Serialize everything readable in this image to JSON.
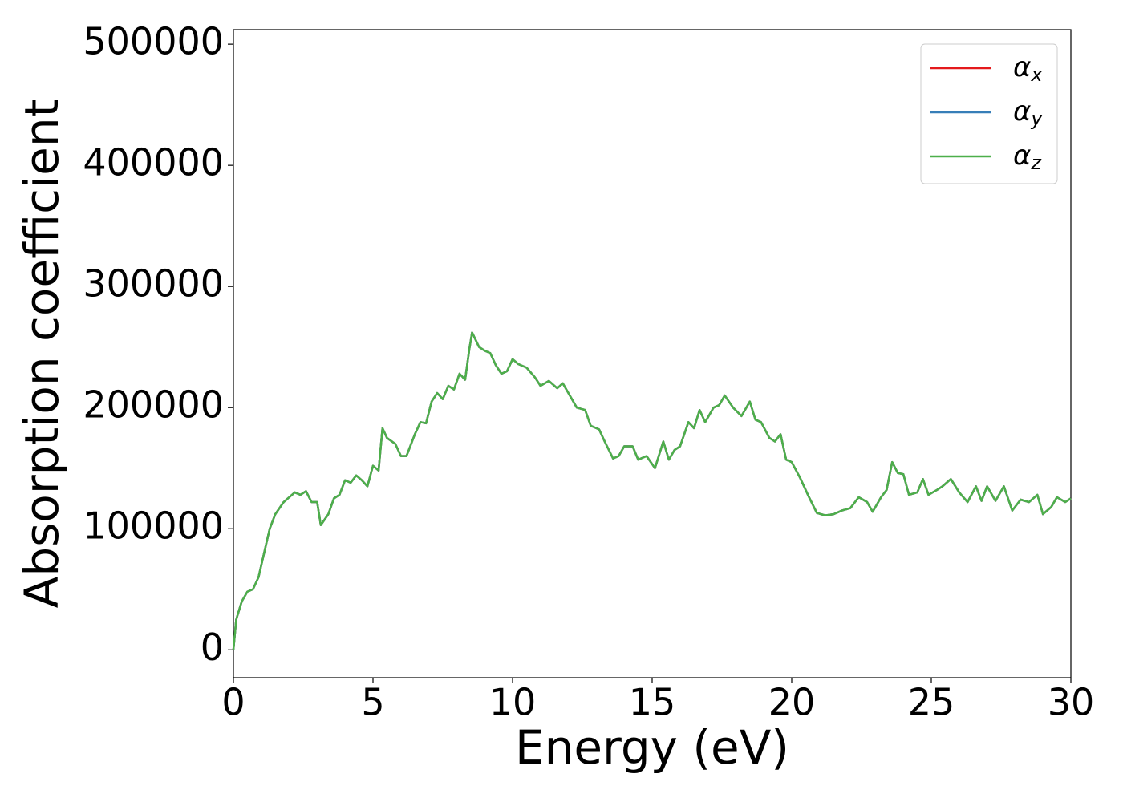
{
  "chart_data": {
    "type": "line",
    "xlabel": "Energy (eV)",
    "ylabel": "Absorption coefficient",
    "x": [
      0,
      0.1,
      0.3,
      0.5,
      0.7,
      0.9,
      1.1,
      1.3,
      1.5,
      1.8,
      2.0,
      2.2,
      2.4,
      2.6,
      2.8,
      3.0,
      3.13,
      3.4,
      3.6,
      3.8,
      4.0,
      4.2,
      4.4,
      4.6,
      4.8,
      5.0,
      5.2,
      5.34,
      5.5,
      5.8,
      6.0,
      6.2,
      6.5,
      6.7,
      6.9,
      7.1,
      7.3,
      7.5,
      7.7,
      7.9,
      8.1,
      8.3,
      8.45,
      8.55,
      8.8,
      9.0,
      9.2,
      9.4,
      9.6,
      9.8,
      10.0,
      10.2,
      10.5,
      10.8,
      11.0,
      11.3,
      11.6,
      11.8,
      12.1,
      12.3,
      12.6,
      12.8,
      13.1,
      13.3,
      13.6,
      13.8,
      14.0,
      14.3,
      14.5,
      14.8,
      15.1,
      15.4,
      15.6,
      15.8,
      16.0,
      16.3,
      16.5,
      16.7,
      16.9,
      17.2,
      17.4,
      17.6,
      17.9,
      18.2,
      18.5,
      18.7,
      18.9,
      19.2,
      19.4,
      19.6,
      19.8,
      20.0,
      20.3,
      20.6,
      20.9,
      21.2,
      21.5,
      21.8,
      22.1,
      22.4,
      22.7,
      22.9,
      23.2,
      23.4,
      23.6,
      23.8,
      24.0,
      24.2,
      24.5,
      24.7,
      24.9,
      25.2,
      25.4,
      25.7,
      26.0,
      26.3,
      26.6,
      26.8,
      27.0,
      27.3,
      27.6,
      27.9,
      28.2,
      28.5,
      28.8,
      29.0,
      29.3,
      29.5,
      29.8,
      30.0
    ],
    "series": [
      {
        "name": "αx",
        "color": "#e41a1c",
        "values": [
          0,
          25000,
          40000,
          48000,
          50000,
          60000,
          80000,
          100000,
          112000,
          122000,
          126000,
          130000,
          128000,
          131000,
          122000,
          122000,
          103000,
          112000,
          125000,
          128000,
          140000,
          138000,
          144000,
          140000,
          135000,
          152000,
          148000,
          183000,
          175000,
          170000,
          160000,
          160000,
          178000,
          188000,
          187000,
          205000,
          212000,
          207000,
          218000,
          215000,
          228000,
          223000,
          248000,
          262000,
          250000,
          247000,
          245000,
          235000,
          228000,
          230000,
          240000,
          236000,
          233000,
          225000,
          218000,
          222000,
          216000,
          220000,
          208000,
          200000,
          198000,
          185000,
          182000,
          172000,
          158000,
          160000,
          168000,
          168000,
          157000,
          160000,
          150000,
          172000,
          157000,
          165000,
          168000,
          188000,
          183000,
          198000,
          188000,
          200000,
          202000,
          210000,
          200000,
          193000,
          205000,
          190000,
          188000,
          175000,
          172000,
          178000,
          157000,
          155000,
          142000,
          127000,
          113000,
          111000,
          112000,
          115000,
          117000,
          126000,
          122000,
          114000,
          126000,
          132000,
          155000,
          146000,
          145000,
          128000,
          130000,
          141000,
          128000,
          132000,
          135000,
          141000,
          130000,
          122000,
          135000,
          123000,
          135000,
          123000,
          135000,
          115000,
          124000,
          122000,
          128000,
          112000,
          118000,
          126000,
          122000,
          125000
        ]
      },
      {
        "name": "αy",
        "color": "#377eb8",
        "values": [
          0,
          25000,
          40000,
          48000,
          50000,
          60000,
          80000,
          100000,
          112000,
          122000,
          126000,
          130000,
          128000,
          131000,
          122000,
          122000,
          103000,
          112000,
          125000,
          128000,
          140000,
          138000,
          144000,
          140000,
          135000,
          152000,
          148000,
          183000,
          175000,
          170000,
          160000,
          160000,
          178000,
          188000,
          187000,
          205000,
          212000,
          207000,
          218000,
          215000,
          228000,
          223000,
          248000,
          262000,
          250000,
          247000,
          245000,
          235000,
          228000,
          230000,
          240000,
          236000,
          233000,
          225000,
          218000,
          222000,
          216000,
          220000,
          208000,
          200000,
          198000,
          185000,
          182000,
          172000,
          158000,
          160000,
          168000,
          168000,
          157000,
          160000,
          150000,
          172000,
          157000,
          165000,
          168000,
          188000,
          183000,
          198000,
          188000,
          200000,
          202000,
          210000,
          200000,
          193000,
          205000,
          190000,
          188000,
          175000,
          172000,
          178000,
          157000,
          155000,
          142000,
          127000,
          113000,
          111000,
          112000,
          115000,
          117000,
          126000,
          122000,
          114000,
          126000,
          132000,
          155000,
          146000,
          145000,
          128000,
          130000,
          141000,
          128000,
          132000,
          135000,
          141000,
          130000,
          122000,
          135000,
          123000,
          135000,
          123000,
          135000,
          115000,
          124000,
          122000,
          128000,
          112000,
          118000,
          126000,
          122000,
          125000
        ]
      },
      {
        "name": "αz",
        "color": "#4daf4a",
        "values": [
          0,
          25000,
          40000,
          48000,
          50000,
          60000,
          80000,
          100000,
          112000,
          122000,
          126000,
          130000,
          128000,
          131000,
          122000,
          122000,
          103000,
          112000,
          125000,
          128000,
          140000,
          138000,
          144000,
          140000,
          135000,
          152000,
          148000,
          183000,
          175000,
          170000,
          160000,
          160000,
          178000,
          188000,
          187000,
          205000,
          212000,
          207000,
          218000,
          215000,
          228000,
          223000,
          248000,
          262000,
          250000,
          247000,
          245000,
          235000,
          228000,
          230000,
          240000,
          236000,
          233000,
          225000,
          218000,
          222000,
          216000,
          220000,
          208000,
          200000,
          198000,
          185000,
          182000,
          172000,
          158000,
          160000,
          168000,
          168000,
          157000,
          160000,
          150000,
          172000,
          157000,
          165000,
          168000,
          188000,
          183000,
          198000,
          188000,
          200000,
          202000,
          210000,
          200000,
          193000,
          205000,
          190000,
          188000,
          175000,
          172000,
          178000,
          157000,
          155000,
          142000,
          127000,
          113000,
          111000,
          112000,
          115000,
          117000,
          126000,
          122000,
          114000,
          126000,
          132000,
          155000,
          146000,
          145000,
          128000,
          130000,
          141000,
          128000,
          132000,
          135000,
          141000,
          130000,
          122000,
          135000,
          123000,
          135000,
          123000,
          135000,
          115000,
          124000,
          122000,
          128000,
          112000,
          118000,
          126000,
          122000,
          125000
        ]
      }
    ],
    "xlim": [
      0,
      30
    ],
    "xticks": [
      0,
      5,
      10,
      15,
      20,
      25,
      30
    ],
    "ylim": [
      -23000,
      512000
    ],
    "yticks": [
      0,
      100000,
      200000,
      300000,
      400000,
      500000
    ],
    "legend": "upper right"
  }
}
